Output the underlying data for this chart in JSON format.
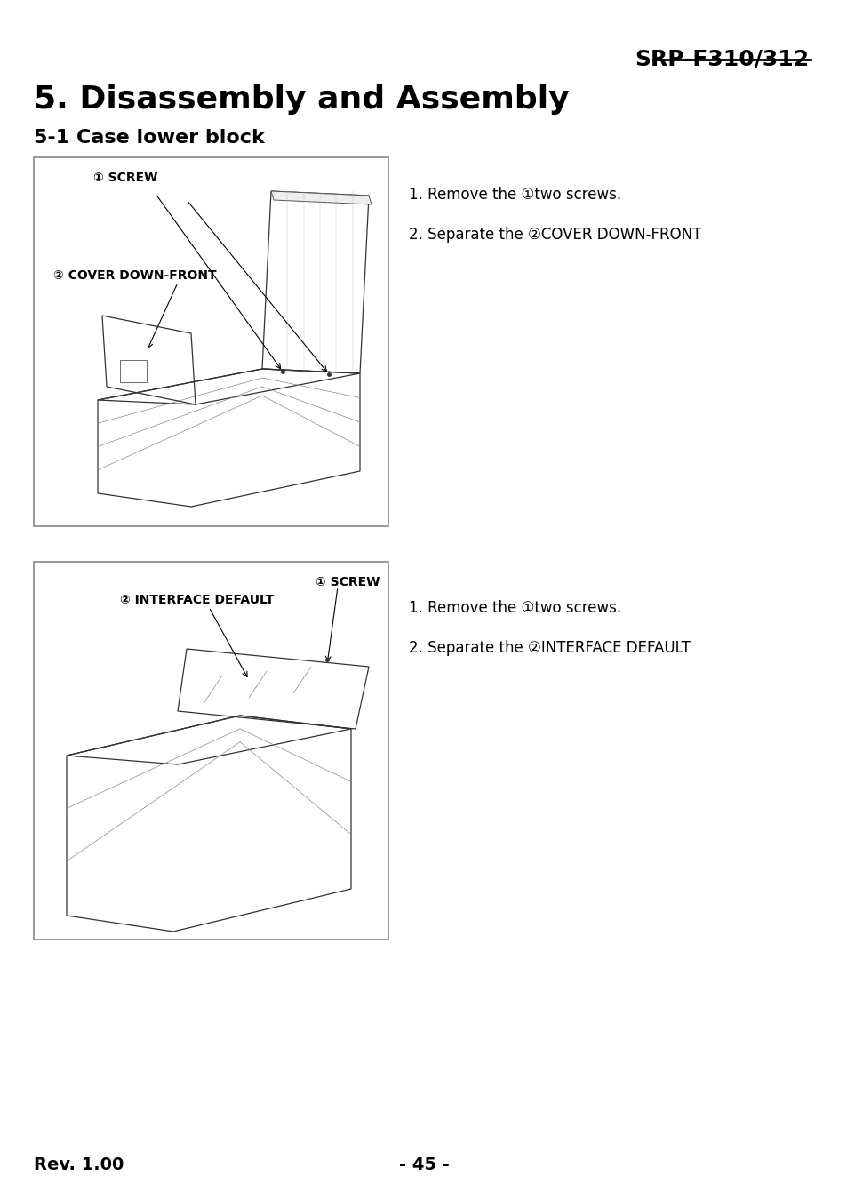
{
  "bg_color": "#ffffff",
  "text_color": "#000000",
  "header_title": "SRP-F310/312",
  "section_title": "5. Disassembly and Assembly",
  "subsection_title": "5-1 Case lower block",
  "footer_left": "Rev. 1.00",
  "footer_center": "- 45 -",
  "box1_label1": "① SCREW",
  "box1_label2": "② COVER DOWN-FRONT",
  "box1_instr1": "1. Remove the ①two screws.",
  "box1_instr2": "2. Separate the ②COVER DOWN-FRONT",
  "box2_label1": "① SCREW",
  "box2_label2": "② INTERFACE DEFAULT",
  "box2_instr1": "1. Remove the ①two screws.",
  "box2_instr2": "2. Separate the ②INTERFACE DEFAULT"
}
